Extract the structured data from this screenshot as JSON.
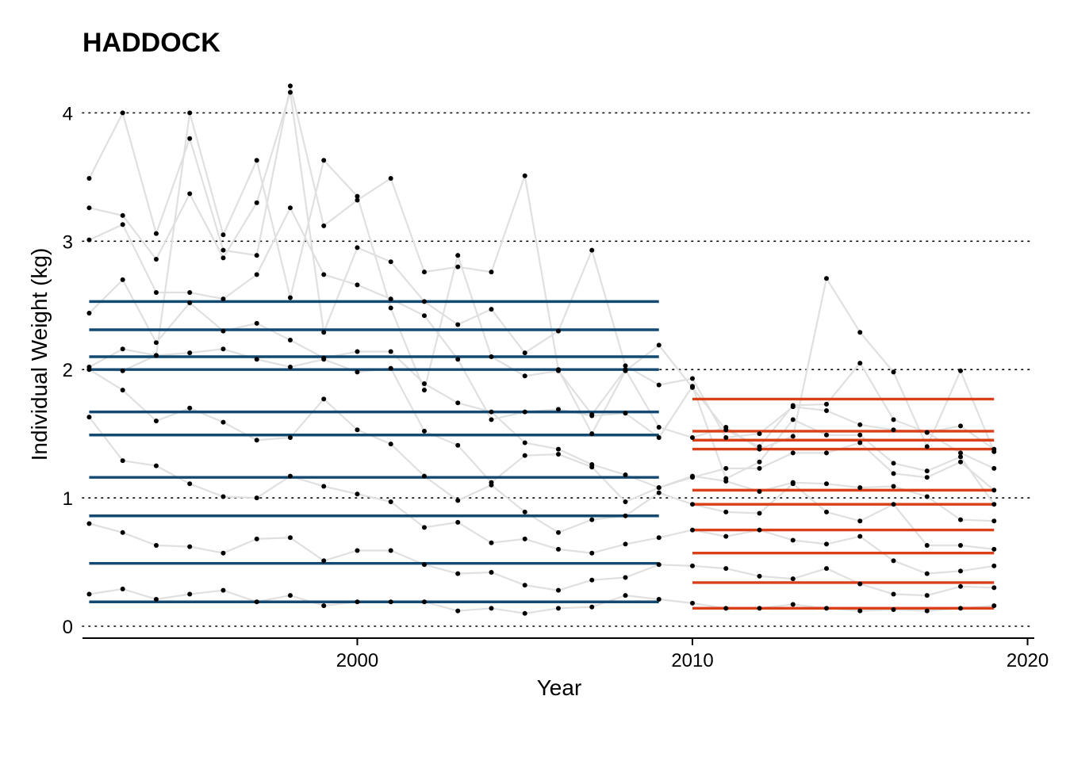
{
  "chart_data": {
    "type": "line",
    "title": "HADDOCK",
    "xlabel": "Year",
    "ylabel": "Individual Weight (kg)",
    "xlim": [
      1991.8,
      2020.2
    ],
    "ylim": [
      0,
      4.2
    ],
    "x_ticks": [
      2000,
      2010,
      2020
    ],
    "y_ticks": [
      0,
      1,
      2,
      3,
      4
    ],
    "grid": "horizontal dotted",
    "legend": "none",
    "colors": {
      "age_lines": "#e0e0e0",
      "points": "#000000",
      "period1_mean": "#144a72",
      "period2_mean": "#d9401a",
      "grid": "#000000"
    },
    "x": [
      1992,
      1993,
      1994,
      1995,
      1996,
      1997,
      1998,
      1999,
      2000,
      2001,
      2002,
      2003,
      2004,
      2005,
      2006,
      2007,
      2008,
      2009,
      2010,
      2011,
      2012,
      2013,
      2014,
      2015,
      2016,
      2017,
      2018,
      2019
    ],
    "series": [
      {
        "values": [
          0.25,
          0.29,
          0.21,
          0.25,
          0.28,
          0.19,
          0.24,
          0.16,
          0.19,
          0.19,
          0.19,
          0.12,
          0.14,
          0.1,
          0.14,
          0.15,
          0.24,
          0.21,
          0.18,
          0.14,
          0.14,
          0.17,
          0.14,
          0.12,
          0.13,
          0.12,
          0.14,
          0.16
        ]
      },
      {
        "values": [
          0.8,
          0.73,
          0.63,
          0.62,
          0.57,
          0.68,
          0.69,
          0.51,
          0.59,
          0.59,
          0.48,
          0.41,
          0.42,
          0.32,
          0.28,
          0.36,
          0.38,
          0.48,
          0.47,
          0.45,
          0.39,
          0.37,
          0.45,
          0.33,
          0.25,
          0.24,
          0.31,
          0.3
        ]
      },
      {
        "values": [
          1.63,
          1.29,
          1.25,
          1.11,
          1.01,
          1.0,
          1.17,
          1.09,
          1.03,
          0.97,
          0.77,
          0.81,
          0.65,
          0.68,
          0.6,
          0.57,
          0.64,
          0.69,
          0.75,
          0.7,
          0.75,
          0.67,
          0.64,
          0.7,
          0.51,
          0.41,
          0.43,
          0.47
        ]
      },
      {
        "values": [
          2.0,
          1.84,
          1.6,
          1.7,
          1.59,
          1.45,
          1.47,
          1.77,
          1.53,
          1.42,
          1.17,
          0.98,
          1.1,
          0.89,
          0.73,
          0.83,
          0.86,
          1.04,
          0.95,
          0.89,
          0.88,
          1.11,
          0.89,
          0.82,
          0.95,
          0.63,
          0.63,
          0.6
        ]
      },
      {
        "values": [
          2.02,
          2.16,
          2.11,
          2.13,
          2.16,
          2.08,
          2.02,
          2.08,
          1.98,
          2.01,
          1.52,
          1.41,
          1.12,
          1.33,
          1.34,
          1.24,
          0.97,
          1.08,
          1.17,
          1.13,
          1.05,
          1.12,
          1.11,
          1.08,
          1.09,
          1.01,
          0.83,
          0.82
        ]
      },
      {
        "values": [
          2.44,
          2.7,
          2.21,
          2.52,
          2.3,
          2.36,
          2.23,
          2.09,
          2.14,
          2.14,
          1.89,
          1.74,
          1.67,
          1.43,
          1.38,
          1.26,
          1.18,
          1.08,
          1.16,
          1.23,
          1.23,
          1.35,
          1.35,
          1.43,
          1.19,
          1.16,
          1.28,
          1.06
        ]
      },
      {
        "values": [
          3.01,
          3.13,
          2.6,
          2.6,
          2.55,
          2.74,
          3.26,
          2.74,
          2.66,
          2.55,
          2.42,
          2.08,
          1.61,
          1.67,
          1.69,
          1.64,
          1.66,
          1.47,
          1.87,
          1.15,
          1.28,
          1.61,
          1.49,
          1.49,
          1.27,
          1.21,
          1.32,
          0.95
        ]
      },
      {
        "values": [
          3.26,
          3.2,
          2.86,
          3.37,
          2.87,
          3.3,
          4.16,
          2.29,
          2.95,
          2.84,
          2.53,
          2.35,
          2.47,
          2.13,
          2.3,
          2.93,
          2.03,
          1.88,
          1.93,
          1.47,
          1.5,
          1.71,
          1.68,
          1.57,
          1.53,
          1.51,
          1.56,
          1.38
        ]
      },
      {
        "values": [
          3.49,
          4.0,
          3.06,
          3.8,
          2.93,
          2.89,
          4.21,
          3.12,
          3.32,
          3.49,
          2.76,
          2.8,
          2.76,
          3.51,
          2.0,
          1.5,
          1.99,
          2.19,
          1.86,
          1.53,
          1.4,
          1.72,
          1.73,
          2.05,
          1.61,
          1.51,
          1.35,
          1.23
        ]
      },
      {
        "values": [
          2.0,
          1.99,
          2.11,
          4.0,
          3.05,
          3.63,
          2.56,
          3.63,
          3.35,
          2.48,
          1.84,
          2.89,
          2.1,
          1.95,
          1.99,
          1.65,
          2.0,
          1.55,
          1.47,
          1.55,
          1.38,
          1.48,
          2.71,
          2.29,
          1.98,
          1.4,
          1.99,
          1.36
        ]
      }
    ],
    "period_means": [
      {
        "period": "1992-2009",
        "x_range": [
          1992,
          2009
        ],
        "values": [
          0.19,
          0.49,
          0.86,
          1.16,
          1.49,
          1.67,
          2.0,
          2.1,
          2.31,
          2.53
        ]
      },
      {
        "period": "2010-2019",
        "x_range": [
          2010,
          2019
        ],
        "values": [
          0.14,
          0.34,
          0.57,
          0.75,
          0.95,
          1.06,
          1.38,
          1.45,
          1.52,
          1.77
        ]
      }
    ]
  }
}
